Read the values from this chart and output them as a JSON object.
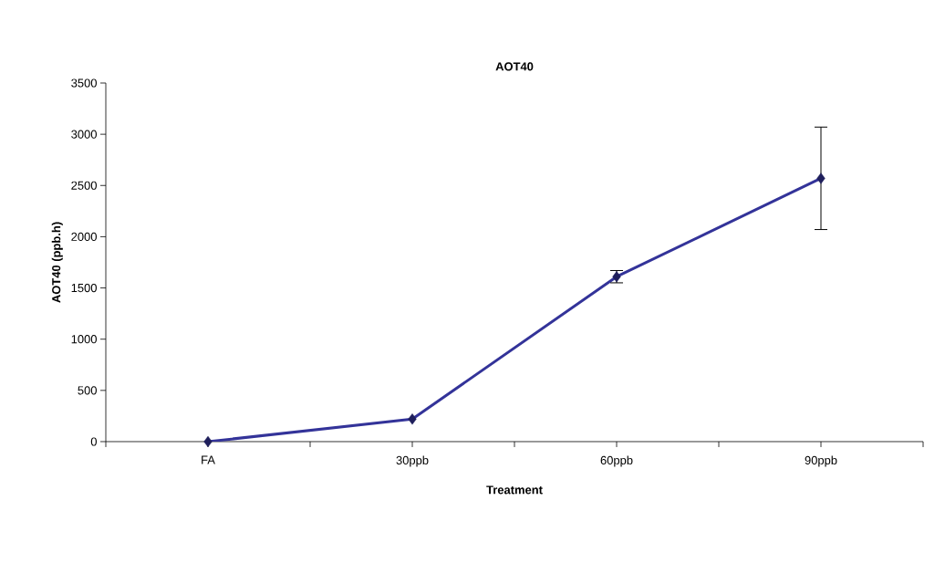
{
  "chart_data": {
    "type": "line",
    "title": "AOT40",
    "xlabel": "Treatment",
    "ylabel": "AOT40 (ppb.h)",
    "categories": [
      "FA",
      "30ppb",
      "60ppb",
      "90ppb"
    ],
    "series": [
      {
        "color": "#333399",
        "values": [
          0,
          220,
          1610,
          2570
        ],
        "errors": [
          null,
          null,
          60,
          500
        ]
      }
    ],
    "ylim": [
      0,
      3500
    ],
    "yticks": [
      0,
      500,
      1000,
      1500,
      2000,
      2500,
      3000,
      3500
    ],
    "marker": "diamond",
    "line_style": "solid"
  }
}
